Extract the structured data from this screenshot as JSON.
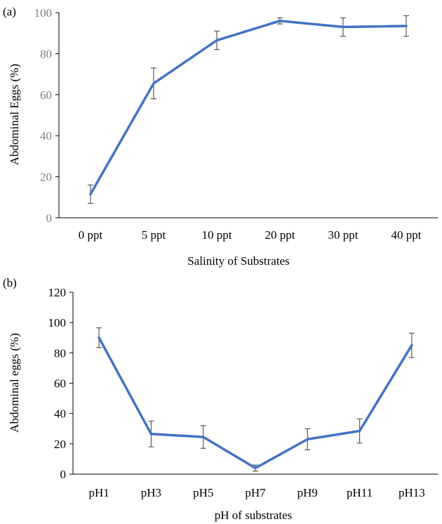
{
  "chart_data": [
    {
      "type": "line",
      "panel_label": "(a)",
      "title": "",
      "xlabel": "Salinity of Substrates",
      "ylabel": "Abdominal Eggs (%)",
      "categories": [
        "0 ppt",
        "5 ppt",
        "10 ppt",
        "20 ppt",
        "30 ppt",
        "40 ppt"
      ],
      "series": [
        {
          "values": [
            11.5,
            65.5,
            86.5,
            96,
            93,
            93.5
          ],
          "errors": [
            4.5,
            7.5,
            4.5,
            1.5,
            4.5,
            5
          ],
          "color": "#4472c4"
        }
      ],
      "ylim": [
        0,
        100
      ],
      "yticks": [
        0,
        20,
        40,
        60,
        80,
        100
      ],
      "ytick_color": "#808080",
      "grid": false,
      "legend": "none"
    },
    {
      "type": "line",
      "panel_label": "(b)",
      "title": "",
      "xlabel": "pH of substrates",
      "ylabel": "Abdominal eggs (%)",
      "categories": [
        "pH1",
        "pH3",
        "pH5",
        "pH7",
        "pH9",
        "pH11",
        "pH13"
      ],
      "series": [
        {
          "values": [
            90,
            26.5,
            24.5,
            4,
            23,
            28.5,
            85
          ],
          "errors": [
            6.5,
            8.5,
            7.5,
            2,
            7,
            8,
            8
          ],
          "color": "#4472c4"
        }
      ],
      "ylim": [
        0,
        120
      ],
      "yticks": [
        0,
        20,
        40,
        60,
        80,
        100,
        120
      ],
      "ytick_color": "#000000",
      "grid": false,
      "legend": "none"
    }
  ]
}
